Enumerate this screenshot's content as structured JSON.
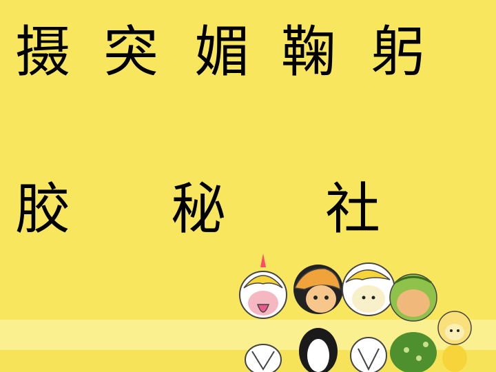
{
  "row1": [
    "摄",
    "突",
    "媚",
    "鞠",
    "躬"
  ],
  "row2": [
    "胶",
    "秘",
    "社"
  ],
  "colors": {
    "background": "#f8e65e",
    "band": "#fbf08f",
    "text": "#000000"
  },
  "illustration": {
    "name": "cartoon-characters-group",
    "characters": [
      "white-pink-character",
      "penguin-character",
      "white-yellow-character",
      "green-character",
      "small-yellow-character"
    ]
  }
}
